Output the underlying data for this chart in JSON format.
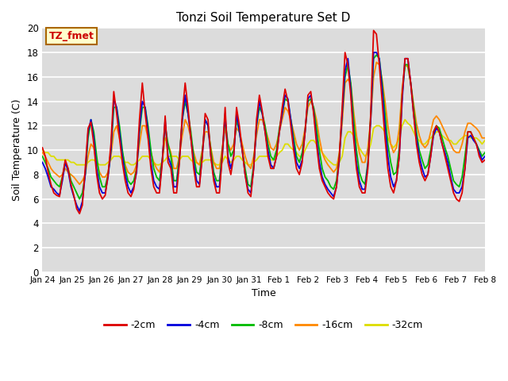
{
  "title": "Tonzi Soil Temperature Set D",
  "xlabel": "Time",
  "ylabel": "Soil Temperature (C)",
  "annotation": "TZ_fmet",
  "ylim": [
    0,
    20
  ],
  "background_color": "#dcdcdc",
  "colors": {
    "-2cm": "#dd0000",
    "-4cm": "#0000dd",
    "-8cm": "#00bb00",
    "-16cm": "#ff8800",
    "-32cm": "#dddd00"
  },
  "xtick_labels": [
    "Jan 24",
    "Jan 25",
    "Jan 26",
    "Jan 27",
    "Jan 28",
    "Jan 29",
    "Jan 30",
    "Jan 31",
    "Feb 1",
    "Feb 2",
    "Feb 3",
    "Feb 4",
    "Feb 5",
    "Feb 6",
    "Feb 7",
    "Feb 8"
  ],
  "series": {
    "-2cm": [
      10.2,
      9.5,
      8.2,
      7.2,
      6.5,
      6.3,
      6.2,
      7.8,
      9.2,
      8.5,
      7.2,
      6.3,
      5.2,
      4.8,
      5.5,
      8.5,
      11.8,
      12.3,
      10.5,
      8.0,
      6.5,
      6.0,
      6.3,
      8.0,
      10.5,
      14.8,
      13.0,
      11.0,
      9.0,
      7.5,
      6.5,
      6.2,
      6.8,
      8.5,
      12.5,
      15.5,
      13.0,
      11.0,
      8.5,
      7.0,
      6.5,
      6.5,
      9.0,
      12.8,
      9.0,
      8.5,
      6.5,
      6.5,
      9.0,
      13.0,
      15.5,
      13.5,
      11.0,
      8.5,
      7.0,
      7.0,
      9.5,
      13.0,
      12.5,
      9.5,
      7.5,
      6.5,
      6.5,
      9.5,
      13.5,
      9.0,
      8.0,
      9.5,
      13.5,
      12.0,
      10.0,
      8.0,
      6.5,
      6.2,
      8.5,
      12.5,
      14.5,
      13.2,
      11.5,
      9.5,
      8.5,
      8.5,
      9.5,
      11.5,
      13.5,
      15.0,
      14.0,
      12.0,
      10.0,
      8.5,
      8.0,
      9.0,
      11.5,
      14.5,
      14.8,
      13.0,
      10.5,
      8.5,
      7.5,
      7.0,
      6.5,
      6.2,
      6.0,
      7.0,
      9.5,
      13.5,
      18.0,
      17.0,
      14.5,
      11.0,
      8.5,
      7.0,
      6.5,
      6.5,
      8.5,
      13.0,
      19.8,
      19.5,
      17.0,
      14.0,
      11.0,
      8.5,
      7.0,
      6.5,
      7.5,
      9.5,
      14.5,
      17.5,
      17.5,
      15.5,
      13.0,
      10.5,
      9.0,
      8.0,
      7.5,
      8.0,
      9.5,
      11.5,
      12.0,
      11.5,
      10.5,
      9.5,
      8.5,
      7.5,
      6.5,
      6.0,
      5.8,
      6.5,
      8.5,
      11.5,
      11.5,
      11.0,
      10.5,
      9.5,
      9.0,
      9.2
    ],
    "-4cm": [
      9.0,
      8.5,
      7.8,
      7.0,
      6.8,
      6.5,
      6.3,
      7.5,
      9.0,
      8.3,
      7.0,
      6.2,
      5.5,
      5.0,
      5.8,
      8.0,
      11.5,
      12.5,
      11.0,
      8.5,
      7.0,
      6.5,
      6.5,
      7.8,
      10.0,
      14.2,
      13.5,
      11.5,
      9.5,
      8.0,
      7.0,
      6.5,
      7.0,
      8.2,
      11.8,
      14.0,
      13.5,
      11.5,
      9.0,
      7.5,
      7.0,
      6.8,
      9.2,
      12.5,
      9.5,
      8.8,
      7.0,
      7.0,
      9.2,
      12.5,
      14.5,
      13.0,
      11.0,
      9.0,
      7.5,
      7.2,
      9.5,
      12.5,
      12.0,
      9.5,
      7.8,
      7.0,
      7.0,
      9.5,
      13.0,
      9.5,
      8.5,
      9.5,
      13.0,
      11.5,
      10.0,
      8.0,
      6.8,
      6.5,
      8.5,
      12.0,
      14.0,
      13.0,
      11.5,
      10.0,
      8.8,
      8.5,
      9.5,
      11.5,
      13.0,
      14.5,
      14.2,
      12.5,
      10.5,
      9.0,
      8.5,
      9.2,
      11.5,
      14.2,
      14.5,
      13.2,
      11.0,
      9.0,
      7.8,
      7.2,
      6.8,
      6.5,
      6.2,
      7.0,
      9.2,
      13.0,
      16.5,
      17.5,
      15.0,
      11.5,
      9.0,
      7.5,
      6.8,
      6.8,
      8.8,
      12.5,
      18.0,
      18.0,
      17.5,
      15.0,
      12.0,
      9.5,
      7.8,
      7.0,
      7.5,
      9.5,
      14.0,
      17.5,
      17.5,
      15.5,
      13.0,
      11.0,
      9.5,
      8.5,
      7.8,
      8.0,
      9.5,
      11.2,
      11.8,
      11.5,
      10.5,
      9.8,
      9.0,
      7.8,
      6.8,
      6.5,
      6.5,
      7.0,
      8.5,
      11.0,
      11.2,
      10.8,
      10.5,
      9.8,
      9.2,
      9.5
    ],
    "-8cm": [
      9.5,
      9.0,
      8.5,
      7.8,
      7.5,
      7.2,
      7.0,
      7.8,
      9.0,
      8.5,
      7.5,
      7.0,
      6.5,
      6.0,
      6.5,
      8.0,
      11.0,
      12.5,
      11.5,
      9.5,
      7.8,
      7.0,
      7.0,
      8.0,
      10.0,
      13.5,
      13.5,
      12.0,
      10.0,
      8.5,
      7.5,
      7.2,
      7.5,
      8.5,
      11.5,
      13.5,
      13.5,
      12.0,
      10.0,
      8.5,
      7.8,
      7.5,
      9.2,
      12.0,
      10.5,
      9.5,
      7.5,
      7.5,
      9.5,
      12.5,
      14.0,
      13.0,
      11.5,
      9.5,
      8.2,
      8.0,
      9.8,
      12.5,
      12.0,
      10.0,
      8.2,
      7.5,
      7.5,
      9.8,
      12.5,
      10.5,
      9.5,
      10.0,
      12.5,
      11.5,
      10.0,
      8.5,
      7.2,
      7.0,
      8.8,
      12.0,
      13.5,
      13.0,
      12.0,
      10.5,
      9.5,
      9.2,
      10.0,
      11.8,
      13.0,
      14.2,
      14.0,
      12.5,
      11.0,
      9.5,
      9.0,
      9.8,
      11.5,
      14.0,
      14.2,
      13.5,
      11.8,
      10.0,
      8.5,
      7.8,
      7.5,
      7.0,
      6.8,
      7.5,
      9.5,
      13.0,
      16.0,
      17.0,
      15.5,
      12.5,
      10.0,
      8.2,
      7.5,
      7.2,
      9.0,
      12.8,
      17.5,
      17.8,
      17.5,
      15.5,
      13.0,
      10.5,
      9.0,
      8.0,
      8.2,
      10.2,
      14.5,
      17.0,
      17.0,
      15.5,
      13.5,
      11.5,
      10.0,
      9.2,
      8.5,
      8.8,
      10.0,
      11.5,
      12.0,
      11.8,
      11.0,
      10.2,
      9.5,
      8.5,
      7.5,
      7.2,
      7.0,
      7.8,
      9.5,
      11.5,
      11.5,
      11.0,
      10.5,
      10.0,
      9.5,
      9.8
    ],
    "-16cm": [
      9.8,
      9.5,
      9.0,
      8.5,
      8.2,
      8.0,
      7.8,
      8.0,
      8.5,
      8.2,
      8.0,
      7.8,
      7.5,
      7.2,
      7.5,
      8.0,
      9.5,
      10.5,
      10.2,
      9.0,
      8.2,
      7.8,
      7.8,
      8.2,
      9.5,
      11.5,
      12.0,
      11.0,
      9.8,
      8.8,
      8.2,
      8.0,
      8.2,
      8.8,
      10.5,
      12.0,
      12.0,
      11.0,
      9.8,
      9.0,
      8.5,
      8.2,
      9.2,
      11.0,
      10.5,
      9.8,
      8.5,
      8.5,
      9.5,
      11.2,
      12.5,
      12.0,
      11.0,
      9.8,
      9.0,
      8.8,
      10.0,
      11.5,
      11.5,
      10.2,
      9.0,
      8.5,
      8.5,
      10.2,
      11.8,
      10.5,
      10.0,
      10.5,
      11.8,
      11.5,
      10.5,
      9.5,
      8.8,
      8.5,
      9.5,
      11.2,
      12.5,
      12.5,
      11.8,
      11.0,
      10.2,
      10.0,
      10.5,
      11.5,
      12.5,
      13.5,
      13.2,
      12.5,
      11.5,
      10.5,
      10.0,
      10.5,
      11.8,
      13.5,
      14.0,
      13.5,
      12.5,
      11.0,
      9.8,
      9.2,
      8.8,
      8.5,
      8.2,
      8.5,
      9.8,
      12.2,
      15.5,
      15.8,
      15.5,
      13.2,
      11.2,
      9.8,
      9.0,
      9.0,
      10.2,
      12.5,
      16.0,
      17.2,
      17.0,
      15.8,
      14.0,
      12.0,
      10.5,
      9.8,
      10.2,
      11.8,
      15.0,
      17.0,
      16.8,
      15.5,
      13.8,
      12.2,
      11.2,
      10.5,
      10.2,
      10.5,
      11.5,
      12.5,
      12.8,
      12.5,
      12.0,
      11.5,
      11.0,
      10.5,
      10.0,
      9.8,
      9.8,
      10.5,
      11.5,
      12.2,
      12.2,
      12.0,
      11.8,
      11.5,
      11.0,
      11.0
    ],
    "-32cm": [
      10.0,
      9.8,
      9.8,
      9.5,
      9.5,
      9.2,
      9.2,
      9.2,
      9.2,
      9.2,
      9.0,
      9.0,
      8.8,
      8.8,
      8.8,
      8.8,
      9.0,
      9.2,
      9.2,
      9.0,
      8.8,
      8.8,
      8.8,
      9.0,
      9.2,
      9.5,
      9.5,
      9.5,
      9.2,
      9.0,
      9.0,
      8.8,
      8.8,
      9.0,
      9.2,
      9.5,
      9.5,
      9.5,
      9.2,
      9.0,
      8.8,
      8.8,
      9.0,
      9.2,
      9.5,
      9.5,
      9.5,
      9.5,
      9.2,
      9.5,
      9.5,
      9.5,
      9.2,
      9.0,
      9.0,
      8.8,
      9.0,
      9.2,
      9.2,
      9.2,
      9.0,
      8.8,
      8.8,
      9.0,
      9.5,
      9.2,
      9.0,
      9.2,
      9.5,
      9.5,
      9.2,
      9.0,
      8.8,
      8.8,
      9.0,
      9.2,
      9.5,
      9.5,
      9.5,
      9.5,
      9.2,
      9.2,
      9.5,
      9.8,
      10.0,
      10.5,
      10.5,
      10.2,
      10.0,
      9.8,
      9.5,
      9.5,
      10.0,
      10.5,
      10.8,
      10.8,
      10.5,
      10.2,
      9.8,
      9.5,
      9.2,
      9.0,
      8.8,
      8.8,
      9.0,
      9.5,
      11.0,
      11.5,
      11.5,
      11.2,
      10.8,
      10.2,
      9.8,
      9.5,
      9.8,
      10.5,
      11.8,
      12.0,
      12.0,
      11.8,
      11.5,
      11.0,
      10.5,
      10.2,
      10.5,
      11.0,
      12.0,
      12.5,
      12.2,
      12.0,
      11.5,
      11.0,
      10.8,
      10.5,
      10.5,
      10.8,
      11.0,
      11.2,
      11.5,
      11.5,
      11.2,
      11.0,
      10.8,
      10.8,
      10.5,
      10.5,
      10.8,
      11.0,
      11.2,
      11.2,
      11.0,
      11.0,
      11.0,
      10.8,
      10.5,
      10.8
    ]
  }
}
